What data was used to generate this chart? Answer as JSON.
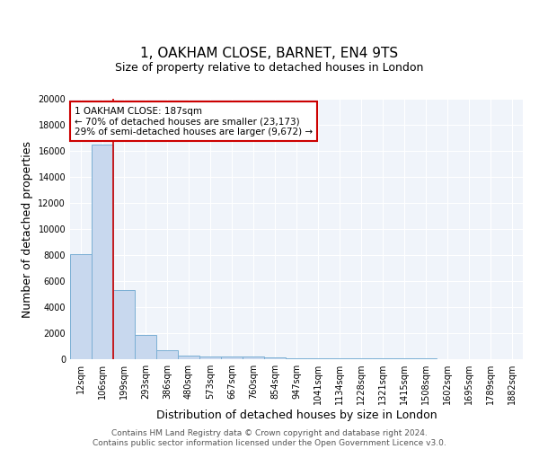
{
  "title": "1, OAKHAM CLOSE, BARNET, EN4 9TS",
  "subtitle": "Size of property relative to detached houses in London",
  "xlabel": "Distribution of detached houses by size in London",
  "ylabel": "Number of detached properties",
  "categories": [
    "12sqm",
    "106sqm",
    "199sqm",
    "293sqm",
    "386sqm",
    "480sqm",
    "573sqm",
    "667sqm",
    "760sqm",
    "854sqm",
    "947sqm",
    "1041sqm",
    "1134sqm",
    "1228sqm",
    "1321sqm",
    "1415sqm",
    "1508sqm",
    "1602sqm",
    "1695sqm",
    "1789sqm",
    "1882sqm"
  ],
  "values": [
    8050,
    16500,
    5300,
    1850,
    700,
    300,
    230,
    200,
    180,
    130,
    80,
    60,
    55,
    50,
    45,
    40,
    35,
    30,
    25,
    20,
    15
  ],
  "bar_color": "#c8d8ee",
  "bar_edge_color": "#7bafd4",
  "vline_x": 1.5,
  "vline_color": "#cc0000",
  "annotation_line1": "1 OAKHAM CLOSE: 187sqm",
  "annotation_line2": "← 70% of detached houses are smaller (23,173)",
  "annotation_line3": "29% of semi-detached houses are larger (9,672) →",
  "annotation_box_color": "#ffffff",
  "annotation_box_edge": "#cc0000",
  "ylim": [
    0,
    20000
  ],
  "yticks": [
    0,
    2000,
    4000,
    6000,
    8000,
    10000,
    12000,
    14000,
    16000,
    18000,
    20000
  ],
  "footer_text": "Contains HM Land Registry data © Crown copyright and database right 2024.\nContains public sector information licensed under the Open Government Licence v3.0.",
  "plot_bg_color": "#f0f4fa",
  "fig_bg_color": "#ffffff",
  "grid_color": "#ffffff",
  "title_fontsize": 11,
  "subtitle_fontsize": 9,
  "tick_fontsize": 7,
  "label_fontsize": 9,
  "footer_fontsize": 6.5
}
